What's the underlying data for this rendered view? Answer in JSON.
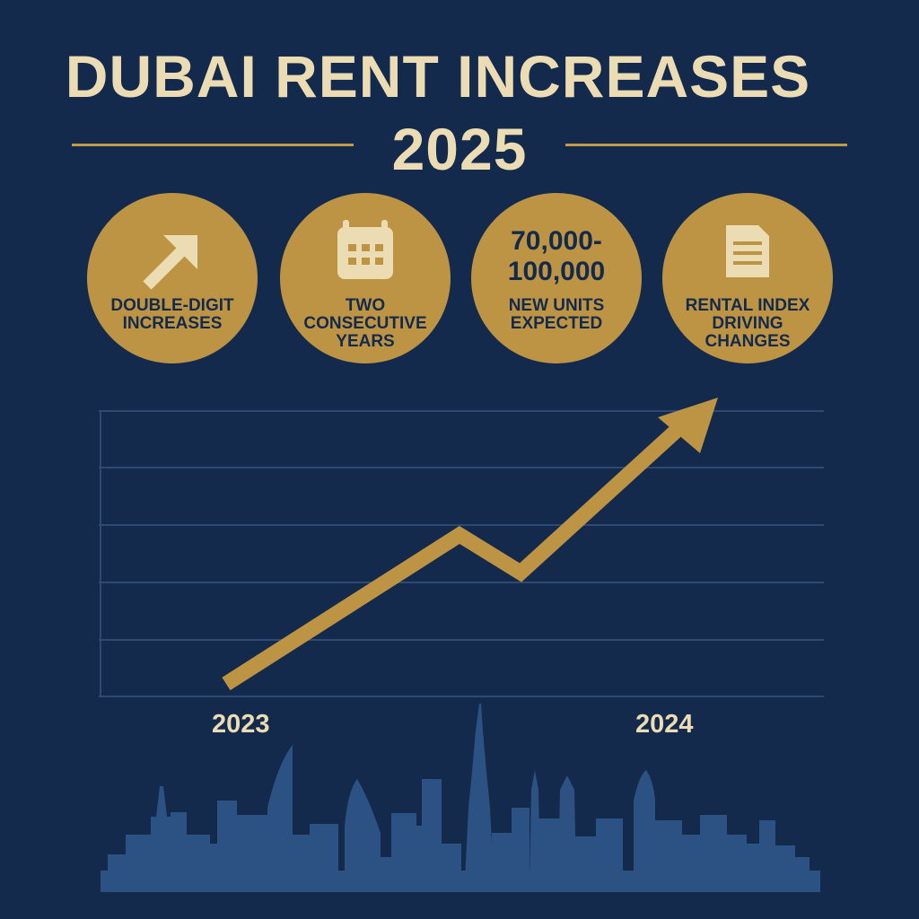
{
  "header": {
    "title": "DUBAI RENT INCREASES",
    "year": "2025"
  },
  "badges": [
    {
      "icon": "arrow-up-right-icon",
      "label": "DOUBLE-DIGIT INCREASES"
    },
    {
      "icon": "calendar-icon",
      "label": "TWO CONSECUTIVE YEARS"
    },
    {
      "icon": "",
      "value_line1": "70,000-",
      "value_line2": "100,000",
      "label": "NEW UNITS EXPECTED"
    },
    {
      "icon": "document-icon",
      "label": "RENTAL INDEX DRIVING CHANGES"
    }
  ],
  "colors": {
    "background": "#142a4d",
    "gold": "#bd9444",
    "cream": "#ecdcb4",
    "grid": "#2f4a72",
    "skyline": "#2b5282"
  },
  "chart_data": {
    "type": "line",
    "x_tick_labels": [
      "2023",
      "2024"
    ],
    "trend": "rising with a dip, ending in an upward arrow",
    "grid": true
  }
}
